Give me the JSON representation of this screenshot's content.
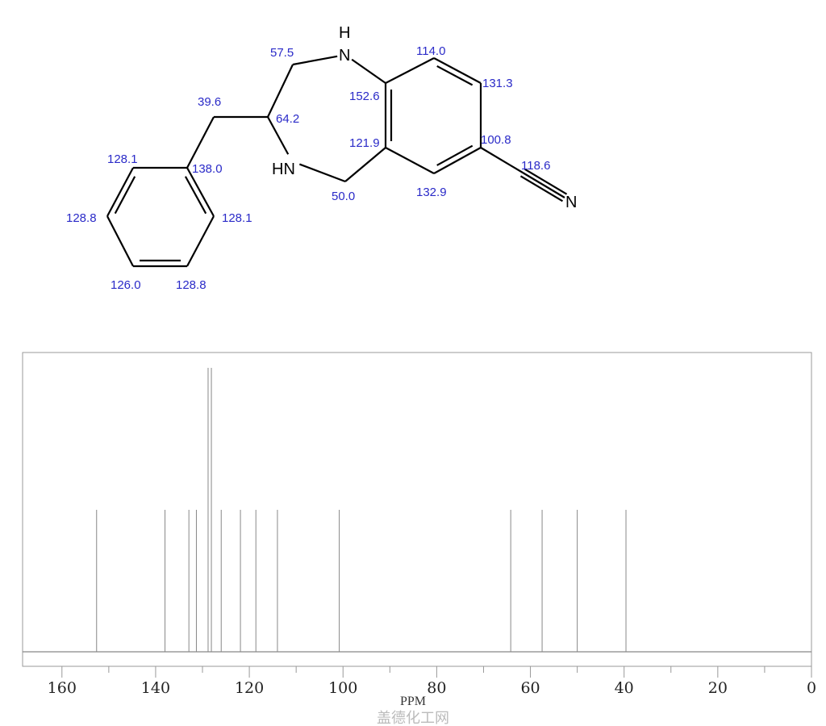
{
  "molecule": {
    "atoms": {
      "n1_h": "H",
      "n1": "N",
      "n4": "HN",
      "nitrile_n": "N"
    },
    "shifts": [
      "57.5",
      "39.6",
      "64.2",
      "128.1",
      "138.0",
      "128.8",
      "128.1",
      "126.0",
      "128.8",
      "50.0",
      "152.6",
      "121.9",
      "114.0",
      "131.3",
      "100.8",
      "118.6",
      "132.9"
    ],
    "shift_color": "#2a2ac8"
  },
  "watermark": "盖德化工网",
  "chart_data": {
    "type": "bar",
    "subtype": "stick spectrum",
    "xlabel": "PPM",
    "xlim": [
      168.4,
      0
    ],
    "x_reversed": true,
    "x_ticks_major": [
      160,
      140,
      120,
      100,
      80,
      60,
      40,
      20,
      0
    ],
    "x_tick_labels": [
      "160",
      "140",
      "120",
      "100",
      "80",
      "60",
      "40",
      "20",
      "0"
    ],
    "x_ticks_minor": [
      150,
      130,
      110,
      90,
      70,
      50,
      30,
      10
    ],
    "grid": false,
    "peaks": [
      {
        "ppm": 152.6,
        "intensity": 1
      },
      {
        "ppm": 138.0,
        "intensity": 1
      },
      {
        "ppm": 132.9,
        "intensity": 1
      },
      {
        "ppm": 131.3,
        "intensity": 1
      },
      {
        "ppm": 128.8,
        "intensity": 2
      },
      {
        "ppm": 128.1,
        "intensity": 2
      },
      {
        "ppm": 126.0,
        "intensity": 1
      },
      {
        "ppm": 121.9,
        "intensity": 1
      },
      {
        "ppm": 118.6,
        "intensity": 1
      },
      {
        "ppm": 114.0,
        "intensity": 1
      },
      {
        "ppm": 100.8,
        "intensity": 1
      },
      {
        "ppm": 64.2,
        "intensity": 1
      },
      {
        "ppm": 57.5,
        "intensity": 1
      },
      {
        "ppm": 50.0,
        "intensity": 1
      },
      {
        "ppm": 39.6,
        "intensity": 1
      }
    ],
    "line_color": "#888888"
  }
}
